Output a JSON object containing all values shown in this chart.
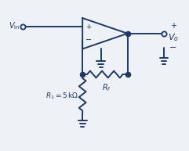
{
  "bg_color": "#eef2f7",
  "line_color": "#1a3a6b",
  "text_color": "#1a3a6b",
  "figsize": [
    2.41,
    1.93
  ],
  "dpi": 100,
  "vin_label": "$V_{\\mathregular{in}}$",
  "r1_label": "$R_1 = 5\\,\\mathregular{k\\Omega}$",
  "rf_label": "$R_f$",
  "vo_label": "$V_o$",
  "plus_label": "+",
  "minus_label": "−"
}
